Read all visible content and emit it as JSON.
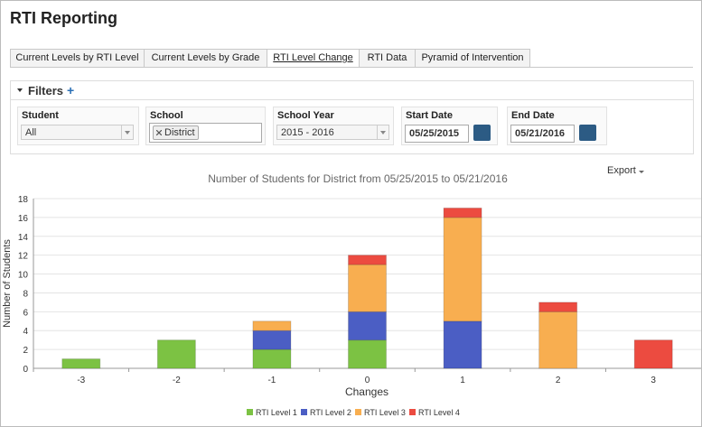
{
  "header": {
    "title": "RTI Reporting"
  },
  "tabs": [
    "Current Levels by RTI Level",
    "Current Levels by Grade",
    "RTI Level Change",
    "RTI Data",
    "Pyramid of Intervention"
  ],
  "filters": {
    "title": "Filters",
    "toggle": "+",
    "fields": [
      {
        "label": "Student",
        "value": "All"
      },
      {
        "label": "School",
        "value": "District"
      },
      {
        "label": "School Year",
        "value": "2015 - 2016"
      },
      {
        "label": "Start Date",
        "value": "05/25/2015"
      },
      {
        "label": "End Date",
        "value": "05/21/2016"
      }
    ]
  },
  "export": "Export",
  "chart_data": {
    "type": "stacked_bar",
    "title": "Number of Students for District from 05/25/2015 to 05/21/2016",
    "x_label": "Changes",
    "y_label": "Number of Students",
    "categories": [
      "-3",
      "-2",
      "-1",
      "0",
      "1",
      "2",
      "3"
    ],
    "series": [
      {
        "name": "RTI Level 1",
        "color": "#7cc243",
        "values": [
          1,
          3,
          2,
          3,
          0,
          0,
          0
        ]
      },
      {
        "name": "RTI Level 2",
        "color": "#4b5ec4",
        "values": [
          0,
          0,
          2,
          3,
          5,
          0,
          0
        ]
      },
      {
        "name": "RTI Level 3",
        "color": "#f8ae50",
        "values": [
          0,
          0,
          1,
          5,
          11,
          6,
          0
        ]
      },
      {
        "name": "RTI Level 4",
        "color": "#ec4b40",
        "values": [
          0,
          0,
          0,
          1,
          1,
          1,
          3
        ]
      }
    ],
    "ylim": [
      0,
      18
    ],
    "yticks": [
      0,
      2,
      4,
      6,
      8,
      10,
      12,
      14,
      16,
      18
    ],
    "grid": true
  }
}
